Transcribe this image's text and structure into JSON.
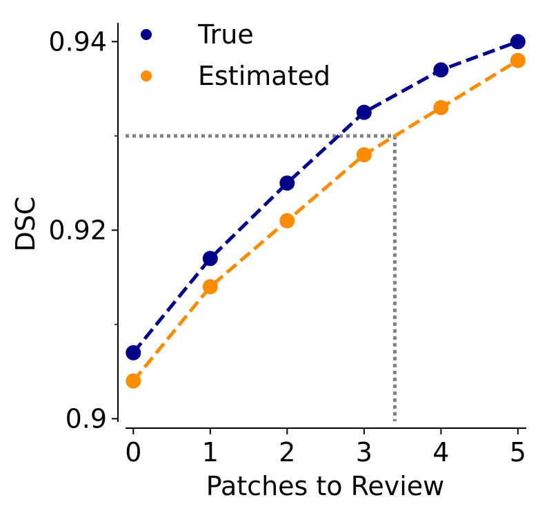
{
  "chart_data": {
    "type": "line",
    "title": "",
    "xlabel": "Patches to Review",
    "ylabel": "DSC",
    "x": [
      0,
      1,
      2,
      3,
      4,
      5
    ],
    "xticks": [
      "0",
      "1",
      "2",
      "3",
      "4",
      "5"
    ],
    "xlim": [
      -0.2,
      5.1
    ],
    "yticks": [
      0.9,
      0.92,
      0.94
    ],
    "ytick_labels": [
      "0.9",
      "0.92",
      "0.94"
    ],
    "yminor_ticks": [
      0.91,
      0.93
    ],
    "ylim": [
      0.899,
      0.942
    ],
    "grid": false,
    "legend_position": "top-left",
    "series": [
      {
        "name": "True",
        "color": "#00008b",
        "line_style": "dashed",
        "values": [
          0.907,
          0.917,
          0.925,
          0.9325,
          0.937,
          0.94
        ]
      },
      {
        "name": "Estimated",
        "color": "#ff8c00",
        "line_style": "dashed",
        "values": [
          0.904,
          0.914,
          0.921,
          0.928,
          0.933,
          0.938
        ]
      }
    ],
    "reference_lines": {
      "color": "#808080",
      "line_style": "dotted",
      "y_threshold": 0.93,
      "x_crossing": 3.4
    }
  }
}
